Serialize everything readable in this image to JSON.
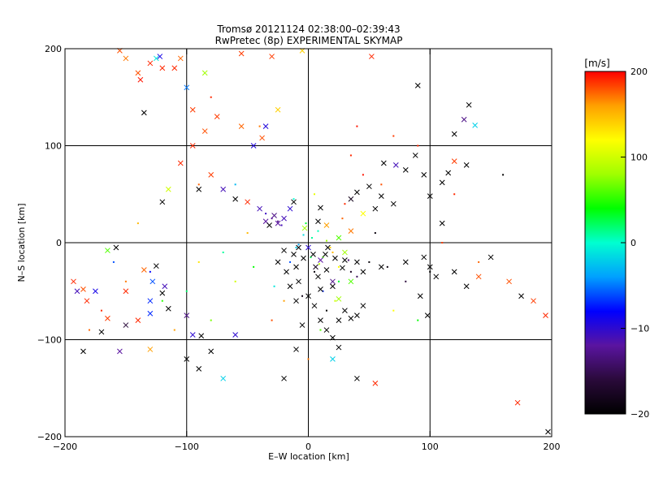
{
  "chart_data": {
    "type": "scatter",
    "title": "Tromsø 20121124 02:38:00–02:39:43",
    "subtitle": "RwPretec (8p) EXPERIMENTAL SKYMAP",
    "xlabel": "E–W location [km]",
    "ylabel": "N–S location [km]",
    "xlim": [
      -200,
      200
    ],
    "ylim": [
      -200,
      200
    ],
    "x_ticks": [
      -200,
      -100,
      0,
      100,
      200
    ],
    "y_ticks": [
      -200,
      -100,
      0,
      100,
      200
    ],
    "grid": true,
    "colorbar": {
      "label": "[m/s]",
      "range": [
        -200,
        200
      ],
      "ticks": [
        200,
        100,
        0,
        -100,
        -200
      ],
      "colors": [
        "#000000",
        "#2a0a3a",
        "#5a14a0",
        "#0000ff",
        "#00a0ff",
        "#00ffd0",
        "#00ff00",
        "#a0ff00",
        "#ffff00",
        "#ffa000",
        "#ff0000"
      ]
    },
    "series": [
      {
        "marker": "dot",
        "points": [
          [
            3,
            5,
            10
          ],
          [
            -8,
            -2,
            -40
          ],
          [
            12,
            -15,
            60
          ],
          [
            -22,
            18,
            -110
          ],
          [
            25,
            -25,
            120
          ],
          [
            5,
            -30,
            -190
          ],
          [
            -2,
            20,
            30
          ],
          [
            15,
            2,
            80
          ],
          [
            -15,
            -20,
            -60
          ],
          [
            8,
            12,
            5
          ],
          [
            30,
            40,
            190
          ],
          [
            45,
            70,
            195
          ],
          [
            -30,
            25,
            -120
          ],
          [
            -25,
            22,
            -130
          ],
          [
            -35,
            30,
            -105
          ],
          [
            20,
            -10,
            150
          ],
          [
            35,
            -30,
            -175
          ],
          [
            50,
            -20,
            -195
          ],
          [
            -5,
            -55,
            -185
          ],
          [
            15,
            -70,
            -200
          ],
          [
            -60,
            -40,
            100
          ],
          [
            -90,
            -20,
            130
          ],
          [
            -120,
            -60,
            50
          ],
          [
            -150,
            -40,
            170
          ],
          [
            -170,
            -70,
            190
          ],
          [
            -130,
            -30,
            -80
          ],
          [
            -100,
            -50,
            20
          ],
          [
            60,
            60,
            180
          ],
          [
            70,
            110,
            185
          ],
          [
            40,
            120,
            195
          ],
          [
            80,
            -40,
            -160
          ],
          [
            100,
            -30,
            -200
          ],
          [
            -40,
            120,
            170
          ],
          [
            -80,
            150,
            190
          ],
          [
            10,
            -90,
            60
          ],
          [
            0,
            -120,
            170
          ],
          [
            25,
            -40,
            30
          ],
          [
            -10,
            -5,
            -20
          ],
          [
            18,
            -5,
            140
          ],
          [
            40,
            -35,
            -150
          ],
          [
            -50,
            10,
            150
          ],
          [
            -70,
            -10,
            10
          ],
          [
            -20,
            -60,
            160
          ],
          [
            5,
            50,
            110
          ],
          [
            -12,
            45,
            0
          ],
          [
            28,
            25,
            175
          ],
          [
            55,
            10,
            -190
          ],
          [
            -45,
            -25,
            40
          ],
          [
            12,
            -50,
            -70
          ],
          [
            22,
            -60,
            100
          ],
          [
            -28,
            -45,
            -10
          ],
          [
            2,
            -15,
            25
          ],
          [
            -4,
            8,
            -15
          ],
          [
            9,
            -22,
            90
          ],
          [
            33,
            -18,
            -140
          ],
          [
            65,
            -25,
            -190
          ],
          [
            -140,
            20,
            150
          ],
          [
            -110,
            -90,
            160
          ],
          [
            -80,
            -80,
            70
          ],
          [
            120,
            50,
            190
          ],
          [
            140,
            -20,
            175
          ],
          [
            160,
            70,
            -200
          ],
          [
            -60,
            60,
            -30
          ],
          [
            -90,
            60,
            175
          ],
          [
            35,
            90,
            190
          ],
          [
            90,
            100,
            190
          ],
          [
            110,
            0,
            185
          ],
          [
            -160,
            -20,
            -60
          ],
          [
            -180,
            -90,
            175
          ],
          [
            -30,
            -80,
            180
          ],
          [
            70,
            -70,
            120
          ],
          [
            90,
            -80,
            40
          ]
        ]
      },
      {
        "marker": "x",
        "points": [
          [
            -155,
            198,
            180
          ],
          [
            -150,
            190,
            170
          ],
          [
            -130,
            185,
            190
          ],
          [
            -140,
            175,
            180
          ],
          [
            -138,
            168,
            195
          ],
          [
            -135,
            134,
            -200
          ],
          [
            -125,
            190,
            -10
          ],
          [
            -122,
            192,
            -90
          ],
          [
            -120,
            180,
            190
          ],
          [
            -110,
            180,
            190
          ],
          [
            -105,
            190,
            175
          ],
          [
            -85,
            175,
            80
          ],
          [
            -100,
            160,
            -50
          ],
          [
            -95,
            137,
            185
          ],
          [
            -55,
            195,
            185
          ],
          [
            -30,
            192,
            185
          ],
          [
            -25,
            137,
            140
          ],
          [
            -35,
            120,
            -95
          ],
          [
            -38,
            108,
            180
          ],
          [
            -45,
            100,
            -95
          ],
          [
            -5,
            198,
            140
          ],
          [
            52,
            192,
            190
          ],
          [
            90,
            162,
            -200
          ],
          [
            110,
            20,
            -200
          ],
          [
            128,
            127,
            -130
          ],
          [
            132,
            142,
            -200
          ],
          [
            137,
            121,
            -20
          ],
          [
            120,
            112,
            -200
          ],
          [
            -115,
            55,
            100
          ],
          [
            -120,
            42,
            -200
          ],
          [
            -165,
            -8,
            60
          ],
          [
            -158,
            -5,
            -200
          ],
          [
            -175,
            -50,
            -90
          ],
          [
            -182,
            -60,
            190
          ],
          [
            -193,
            -40,
            190
          ],
          [
            -185,
            -48,
            180
          ],
          [
            -150,
            -50,
            190
          ],
          [
            -130,
            -60,
            -70
          ],
          [
            -118,
            -45,
            -110
          ],
          [
            -100,
            -75,
            -130
          ],
          [
            -95,
            -95,
            -100
          ],
          [
            -88,
            -96,
            -200
          ],
          [
            -80,
            -112,
            -200
          ],
          [
            -70,
            -140,
            -20
          ],
          [
            -60,
            -95,
            -100
          ],
          [
            -125,
            -24,
            -200
          ],
          [
            -135,
            -28,
            175
          ],
          [
            -128,
            -40,
            -60
          ],
          [
            -120,
            -52,
            -200
          ],
          [
            -115,
            -68,
            -200
          ],
          [
            -130,
            -73,
            -70
          ],
          [
            -140,
            -80,
            190
          ],
          [
            -150,
            -85,
            -160
          ],
          [
            -165,
            -78,
            185
          ],
          [
            -170,
            -92,
            -200
          ],
          [
            -190,
            -50,
            -110
          ],
          [
            -185,
            -112,
            -200
          ],
          [
            -155,
            -112,
            -120
          ],
          [
            -130,
            -110,
            160
          ],
          [
            -100,
            -120,
            -200
          ],
          [
            -90,
            -130,
            -200
          ],
          [
            60,
            -25,
            -200
          ],
          [
            80,
            -20,
            -200
          ],
          [
            95,
            -15,
            -200
          ],
          [
            100,
            -25,
            -200
          ],
          [
            105,
            -35,
            -200
          ],
          [
            92,
            -55,
            -200
          ],
          [
            98,
            -75,
            -200
          ],
          [
            120,
            -30,
            -200
          ],
          [
            130,
            -45,
            -200
          ],
          [
            140,
            -35,
            180
          ],
          [
            150,
            -15,
            -200
          ],
          [
            165,
            -40,
            180
          ],
          [
            175,
            -55,
            -200
          ],
          [
            185,
            -60,
            185
          ],
          [
            195,
            -75,
            190
          ],
          [
            172,
            -165,
            190
          ],
          [
            197,
            -195,
            -200
          ],
          [
            55,
            -145,
            190
          ],
          [
            40,
            -140,
            -200
          ],
          [
            25,
            -108,
            -200
          ],
          [
            20,
            -98,
            -200
          ],
          [
            15,
            -90,
            -200
          ],
          [
            25,
            -80,
            -200
          ],
          [
            35,
            -78,
            -200
          ],
          [
            30,
            -70,
            -200
          ],
          [
            10,
            -80,
            -200
          ],
          [
            -10,
            -60,
            -200
          ],
          [
            5,
            -65,
            -200
          ],
          [
            40,
            -75,
            -200
          ],
          [
            45,
            -65,
            -200
          ],
          [
            -5,
            -85,
            -200
          ],
          [
            20,
            -120,
            -20
          ],
          [
            -20,
            -140,
            -200
          ],
          [
            -10,
            -110,
            -200
          ],
          [
            30,
            -18,
            -200
          ],
          [
            40,
            -20,
            -200
          ],
          [
            45,
            -30,
            -200
          ],
          [
            35,
            -40,
            60
          ],
          [
            20,
            -45,
            -200
          ],
          [
            10,
            -48,
            -200
          ],
          [
            25,
            -58,
            80
          ],
          [
            8,
            -35,
            -200
          ],
          [
            15,
            -28,
            -200
          ],
          [
            -10,
            -25,
            -200
          ],
          [
            -15,
            -45,
            -200
          ],
          [
            -25,
            -20,
            -200
          ],
          [
            -8,
            -40,
            -200
          ],
          [
            0,
            -55,
            -200
          ],
          [
            14,
            -12,
            -200
          ],
          [
            30,
            -10,
            80
          ],
          [
            20,
            -40,
            -130
          ],
          [
            -18,
            -30,
            -200
          ],
          [
            -25,
            20,
            -120
          ],
          [
            -28,
            28,
            -130
          ],
          [
            -20,
            25,
            -110
          ],
          [
            -35,
            22,
            -120
          ],
          [
            -40,
            35,
            -110
          ],
          [
            -32,
            18,
            -200
          ],
          [
            -15,
            35,
            -100
          ],
          [
            -12,
            42,
            -200
          ],
          [
            -8,
            -5,
            -200
          ],
          [
            -3,
            15,
            80
          ],
          [
            8,
            22,
            -200
          ],
          [
            10,
            36,
            -200
          ],
          [
            15,
            18,
            160
          ],
          [
            25,
            5,
            60
          ],
          [
            35,
            12,
            170
          ],
          [
            40,
            52,
            -200
          ],
          [
            50,
            58,
            -200
          ],
          [
            60,
            48,
            -200
          ],
          [
            70,
            40,
            -200
          ],
          [
            35,
            45,
            -180
          ],
          [
            45,
            30,
            120
          ],
          [
            55,
            35,
            -200
          ],
          [
            62,
            82,
            -200
          ],
          [
            72,
            80,
            -110
          ],
          [
            80,
            75,
            -200
          ],
          [
            88,
            90,
            -200
          ],
          [
            95,
            70,
            -200
          ],
          [
            100,
            48,
            -200
          ],
          [
            110,
            62,
            -200
          ],
          [
            115,
            72,
            -200
          ],
          [
            120,
            84,
            185
          ],
          [
            130,
            80,
            -200
          ],
          [
            -55,
            120,
            175
          ],
          [
            -75,
            130,
            185
          ],
          [
            -85,
            115,
            180
          ],
          [
            -95,
            100,
            190
          ],
          [
            -105,
            82,
            190
          ],
          [
            -80,
            70,
            185
          ],
          [
            -90,
            55,
            -200
          ],
          [
            -70,
            55,
            -110
          ],
          [
            -60,
            45,
            -200
          ],
          [
            -50,
            42,
            190
          ],
          [
            0,
            -5,
            -100
          ],
          [
            4,
            -12,
            -200
          ],
          [
            10,
            -18,
            -120
          ],
          [
            -4,
            -16,
            -200
          ],
          [
            6,
            -25,
            -180
          ],
          [
            16,
            -5,
            -200
          ],
          [
            22,
            -16,
            -200
          ],
          [
            28,
            -26,
            -200
          ],
          [
            -12,
            -12,
            -200
          ],
          [
            -20,
            -8,
            -200
          ]
        ]
      }
    ]
  }
}
